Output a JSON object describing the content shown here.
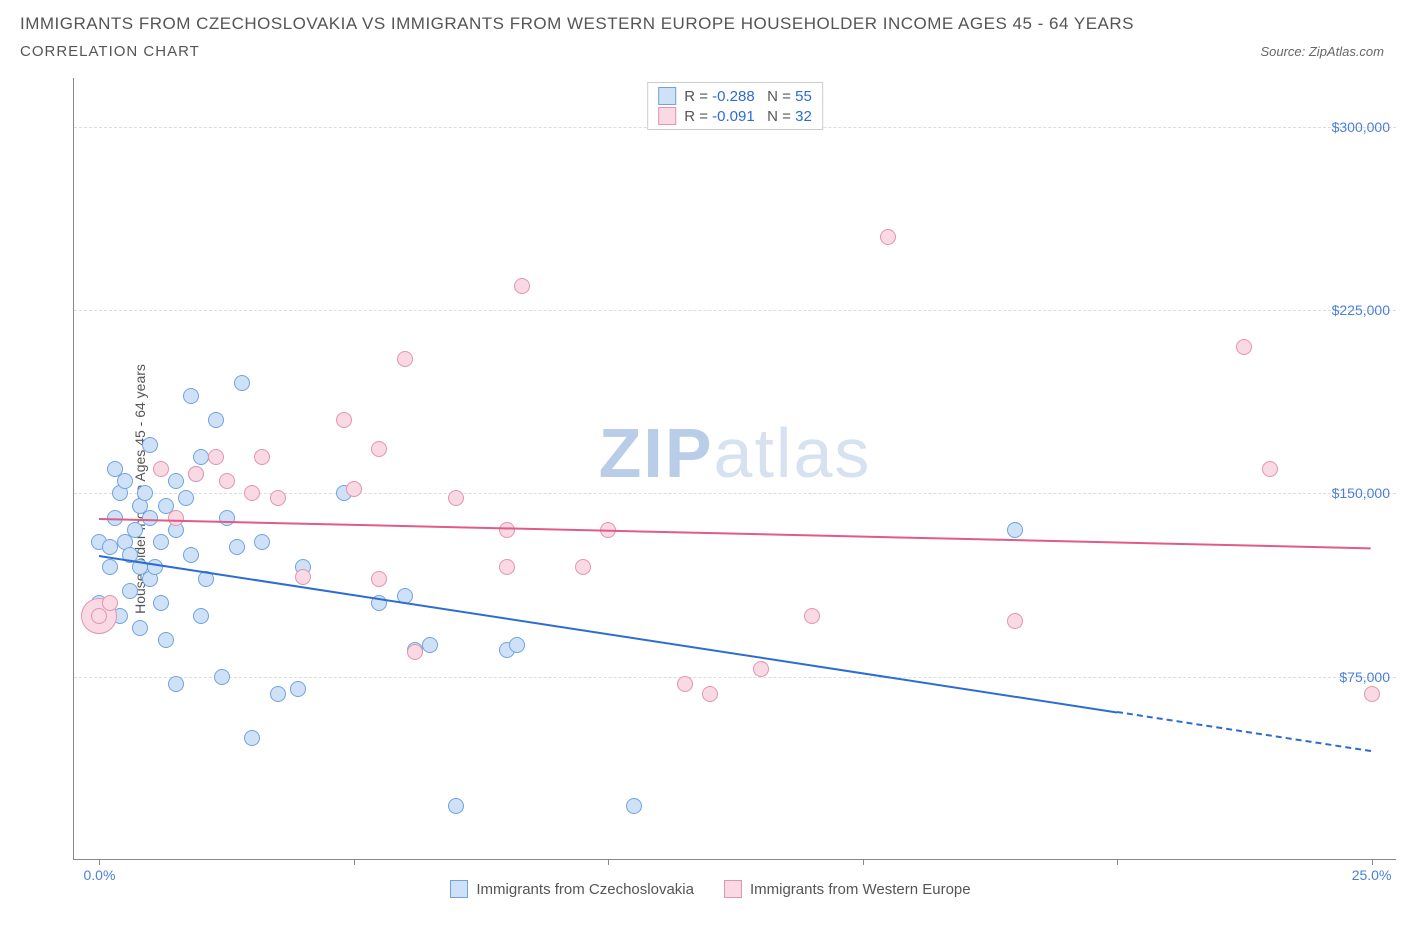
{
  "title": "IMMIGRANTS FROM CZECHOSLOVAKIA VS IMMIGRANTS FROM WESTERN EUROPE HOUSEHOLDER INCOME AGES 45 - 64 YEARS",
  "subtitle": "CORRELATION CHART",
  "source_prefix": "Source: ",
  "source": "ZipAtlas.com",
  "ylabel": "Householder Income Ages 45 - 64 years",
  "chart": {
    "type": "scatter",
    "xlim": [
      -0.5,
      25.5
    ],
    "ylim": [
      0,
      320000
    ],
    "x_ticks": [
      0,
      5,
      10,
      15,
      20,
      25
    ],
    "x_tick_labels": {
      "0": "0.0%",
      "25": "25.0%"
    },
    "y_ticks": [
      75000,
      150000,
      225000,
      300000
    ],
    "y_tick_labels": [
      "$75,000",
      "$150,000",
      "$225,000",
      "$300,000"
    ],
    "grid_color": "#dddddd",
    "axis_color": "#888888",
    "background_color": "#ffffff",
    "watermark": {
      "text_bold": "ZIP",
      "text_light": "atlas",
      "color_bold": "#b9cde8",
      "color_light": "#d7e1ef"
    }
  },
  "series": [
    {
      "name": "Immigrants from Czechoslovakia",
      "label": "Immigrants from Czechoslovakia",
      "R": "-0.288",
      "N": "55",
      "fill": "#cfe1f7",
      "stroke": "#6fa3e0",
      "line_color": "#2d6cd2",
      "marker_radius": 8,
      "trend": {
        "x1": 0.0,
        "y1": 125000,
        "x2": 20.0,
        "y2": 61000,
        "dash_to_x": 25.0,
        "dash_to_y": 45000
      },
      "points": [
        [
          0.0,
          130000
        ],
        [
          0.0,
          105000
        ],
        [
          0.2,
          128000
        ],
        [
          0.2,
          120000
        ],
        [
          0.3,
          160000
        ],
        [
          0.3,
          140000
        ],
        [
          0.4,
          150000
        ],
        [
          0.4,
          100000
        ],
        [
          0.5,
          155000
        ],
        [
          0.5,
          130000
        ],
        [
          0.6,
          125000
        ],
        [
          0.6,
          110000
        ],
        [
          0.7,
          135000
        ],
        [
          0.8,
          145000
        ],
        [
          0.8,
          120000
        ],
        [
          0.8,
          95000
        ],
        [
          0.9,
          150000
        ],
        [
          1.0,
          170000
        ],
        [
          1.0,
          140000
        ],
        [
          1.0,
          115000
        ],
        [
          1.1,
          120000
        ],
        [
          1.2,
          130000
        ],
        [
          1.2,
          105000
        ],
        [
          1.3,
          145000
        ],
        [
          1.3,
          90000
        ],
        [
          1.5,
          155000
        ],
        [
          1.5,
          135000
        ],
        [
          1.5,
          72000
        ],
        [
          1.7,
          148000
        ],
        [
          1.8,
          190000
        ],
        [
          1.8,
          125000
        ],
        [
          1.9,
          158000
        ],
        [
          2.0,
          165000
        ],
        [
          2.0,
          100000
        ],
        [
          2.1,
          115000
        ],
        [
          2.3,
          180000
        ],
        [
          2.4,
          75000
        ],
        [
          2.5,
          140000
        ],
        [
          2.7,
          128000
        ],
        [
          2.8,
          195000
        ],
        [
          3.0,
          50000
        ],
        [
          3.2,
          130000
        ],
        [
          3.5,
          68000
        ],
        [
          3.9,
          70000
        ],
        [
          4.0,
          120000
        ],
        [
          4.8,
          150000
        ],
        [
          5.5,
          105000
        ],
        [
          6.0,
          108000
        ],
        [
          6.2,
          86000
        ],
        [
          6.5,
          88000
        ],
        [
          7.0,
          22000
        ],
        [
          8.0,
          86000
        ],
        [
          8.2,
          88000
        ],
        [
          10.5,
          22000
        ],
        [
          18.0,
          135000
        ]
      ]
    },
    {
      "name": "Immigrants from Western Europe",
      "label": "Immigrants from Western Europe",
      "R": "-0.091",
      "N": "32",
      "fill": "#f9d9e3",
      "stroke": "#e394b0",
      "line_color": "#e05a8a",
      "marker_radius": 8,
      "trend": {
        "x1": 0.0,
        "y1": 140000,
        "x2": 25.0,
        "y2": 128000
      },
      "points": [
        [
          0.0,
          100000
        ],
        [
          0.2,
          105000
        ],
        [
          1.2,
          160000
        ],
        [
          1.5,
          140000
        ],
        [
          1.9,
          158000
        ],
        [
          2.3,
          165000
        ],
        [
          2.5,
          155000
        ],
        [
          3.0,
          150000
        ],
        [
          3.2,
          165000
        ],
        [
          3.5,
          148000
        ],
        [
          4.0,
          116000
        ],
        [
          4.8,
          180000
        ],
        [
          5.0,
          152000
        ],
        [
          5.5,
          168000
        ],
        [
          5.5,
          115000
        ],
        [
          6.0,
          205000
        ],
        [
          6.2,
          85000
        ],
        [
          7.0,
          148000
        ],
        [
          8.0,
          120000
        ],
        [
          8.0,
          135000
        ],
        [
          8.3,
          235000
        ],
        [
          9.5,
          120000
        ],
        [
          10.0,
          135000
        ],
        [
          11.5,
          72000
        ],
        [
          12.0,
          68000
        ],
        [
          13.0,
          78000
        ],
        [
          14.0,
          100000
        ],
        [
          15.5,
          255000
        ],
        [
          18.0,
          98000
        ],
        [
          22.5,
          210000
        ],
        [
          23.0,
          160000
        ],
        [
          25.0,
          68000
        ]
      ],
      "big_point": {
        "x": 0.0,
        "y": 100000,
        "r": 18
      }
    }
  ],
  "legend_stat_labels": {
    "R": "R =",
    "N": "N ="
  },
  "colors": {
    "stat_value": "#2d6cd2",
    "tick_label": "#4a7fd8"
  }
}
